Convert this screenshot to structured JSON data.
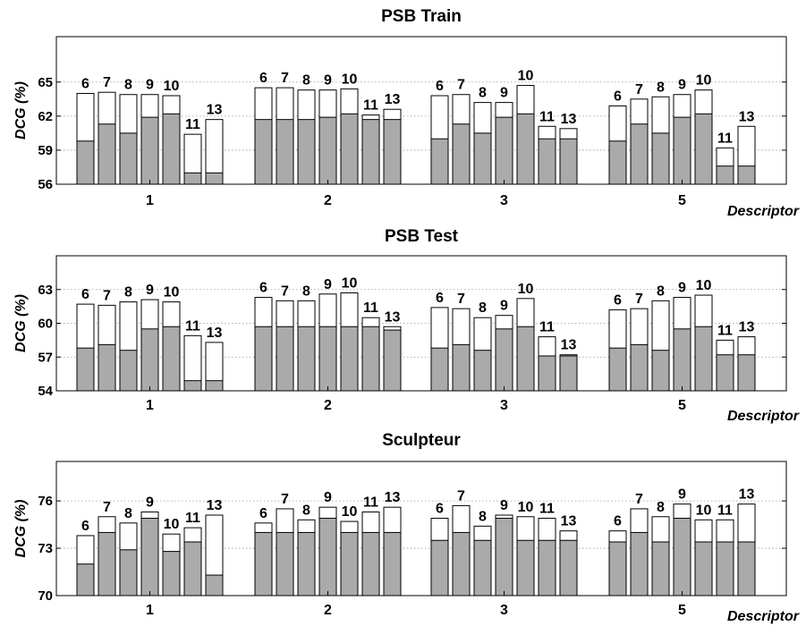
{
  "chart_data": [
    {
      "type": "bar",
      "title": "PSB Train",
      "ylabel": "DCG (%)",
      "xlabel": "Descriptor",
      "ylim": [
        56,
        69
      ],
      "yticks": [
        56,
        59,
        62,
        65
      ],
      "grid": "horizontal dotted",
      "categories": [
        "1",
        "2",
        "3",
        "5"
      ],
      "bar_labels": [
        "6",
        "7",
        "8",
        "9",
        "10",
        "11",
        "13"
      ],
      "series": [
        {
          "role": "baseline (gray)",
          "values": [
            [
              59.8,
              61.3,
              60.5,
              61.9,
              62.2,
              57.0,
              57.0
            ],
            [
              61.7,
              61.7,
              61.7,
              61.9,
              62.2,
              61.7,
              61.7
            ],
            [
              60.0,
              61.3,
              60.5,
              61.9,
              62.2,
              60.0,
              60.0
            ],
            [
              59.8,
              61.3,
              60.5,
              61.9,
              62.2,
              57.6,
              57.6
            ]
          ]
        },
        {
          "role": "total (white outline)",
          "values": [
            [
              64.0,
              64.1,
              63.9,
              63.9,
              63.8,
              60.4,
              61.7
            ],
            [
              64.5,
              64.5,
              64.3,
              64.3,
              64.4,
              62.1,
              62.6
            ],
            [
              63.8,
              63.9,
              63.2,
              63.2,
              64.7,
              61.1,
              60.9
            ],
            [
              62.9,
              63.5,
              63.7,
              63.9,
              64.3,
              59.2,
              61.1
            ]
          ]
        }
      ]
    },
    {
      "type": "bar",
      "title": "PSB Test",
      "ylabel": "DCG (%)",
      "xlabel": "Descriptor",
      "ylim": [
        54,
        66
      ],
      "yticks": [
        54,
        57,
        60,
        63
      ],
      "grid": "horizontal dotted",
      "categories": [
        "1",
        "2",
        "3",
        "5"
      ],
      "bar_labels": [
        "6",
        "7",
        "8",
        "9",
        "10",
        "11",
        "13"
      ],
      "series": [
        {
          "role": "baseline (gray)",
          "values": [
            [
              57.8,
              58.1,
              57.6,
              59.5,
              59.7,
              54.9,
              54.9
            ],
            [
              59.7,
              59.7,
              59.7,
              59.7,
              59.7,
              59.7,
              59.4
            ],
            [
              57.8,
              58.1,
              57.6,
              59.5,
              59.7,
              57.1,
              57.1
            ],
            [
              57.8,
              58.1,
              57.6,
              59.5,
              59.7,
              57.2,
              57.2
            ]
          ]
        },
        {
          "role": "total (white outline)",
          "values": [
            [
              61.7,
              61.6,
              61.9,
              62.1,
              61.9,
              58.9,
              58.3
            ],
            [
              62.3,
              62.0,
              62.0,
              62.6,
              62.7,
              60.5,
              59.7
            ],
            [
              61.4,
              61.3,
              60.5,
              60.7,
              62.2,
              58.8,
              57.2
            ],
            [
              61.2,
              61.3,
              62.0,
              62.3,
              62.5,
              58.5,
              58.8
            ]
          ]
        }
      ]
    },
    {
      "type": "bar",
      "title": "Sculpteur",
      "ylabel": "DCG (%)",
      "xlabel": "Descriptor",
      "ylim": [
        70,
        78.5
      ],
      "yticks": [
        70,
        73,
        76
      ],
      "grid": "horizontal dotted",
      "categories": [
        "1",
        "2",
        "3",
        "5"
      ],
      "bar_labels": [
        "6",
        "7",
        "8",
        "9",
        "10",
        "11",
        "13"
      ],
      "series": [
        {
          "role": "baseline (gray)",
          "values": [
            [
              72.0,
              74.0,
              72.9,
              74.9,
              72.8,
              73.4,
              71.3
            ],
            [
              74.0,
              74.0,
              74.0,
              74.9,
              74.0,
              74.0,
              74.0
            ],
            [
              73.5,
              74.0,
              73.5,
              74.9,
              73.5,
              73.5,
              73.5
            ],
            [
              73.4,
              74.0,
              73.4,
              74.9,
              73.4,
              73.4,
              73.4
            ]
          ]
        },
        {
          "role": "total (white outline)",
          "values": [
            [
              73.8,
              75.0,
              74.6,
              75.3,
              73.9,
              74.3,
              75.1
            ],
            [
              74.6,
              75.5,
              74.8,
              75.6,
              74.7,
              75.3,
              75.6
            ],
            [
              74.9,
              75.7,
              74.4,
              75.1,
              75.0,
              74.9,
              74.1
            ],
            [
              74.1,
              75.5,
              75.0,
              75.8,
              74.8,
              74.8,
              75.8
            ]
          ]
        }
      ]
    }
  ]
}
